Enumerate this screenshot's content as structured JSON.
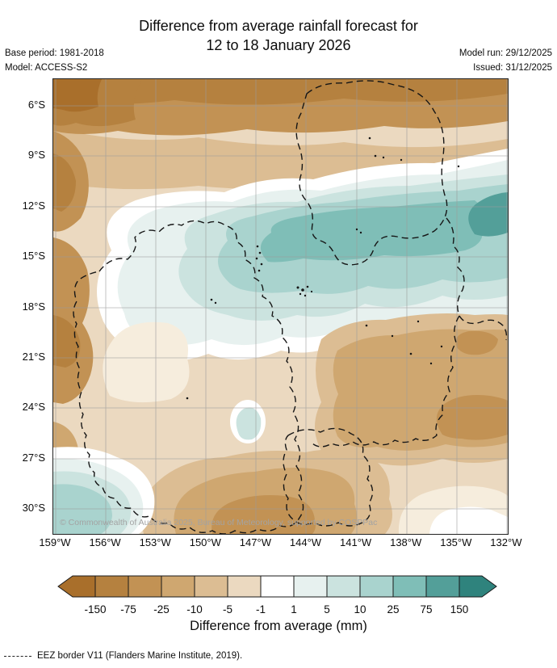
{
  "header": {
    "title_line1": "Difference from average rainfall forecast for",
    "title_line2": "12 to 18 January 2026",
    "base_period": "Base period: 1981-2018",
    "model": "Model: ACCESS-S2",
    "model_run": "Model run: 29/12/2025",
    "issued": "Issued: 31/12/2025"
  },
  "map": {
    "lat_labels": [
      "6°S",
      "9°S",
      "12°S",
      "15°S",
      "18°S",
      "21°S",
      "24°S",
      "27°S",
      "30°S"
    ],
    "lon_labels": [
      "159°W",
      "156°W",
      "153°W",
      "150°W",
      "147°W",
      "144°W",
      "141°W",
      "138°W",
      "135°W",
      "132°W"
    ],
    "copyright": "© Commonwealth of Australia 2025, Bureau of Meteorology, supported by COSPPac"
  },
  "legend": {
    "ticks": [
      "-150",
      "-75",
      "-25",
      "-10",
      "-5",
      "-1",
      "1",
      "5",
      "10",
      "25",
      "75",
      "150"
    ],
    "cell_colors": [
      "#a96f2b",
      "#b5813f",
      "#c29254",
      "#cfa770",
      "#dcbd93",
      "#ebd9c0",
      "#ffffff",
      "#e7f1ef",
      "#cbe3df",
      "#a9d3ce",
      "#7fbeb7",
      "#539f99",
      "#2f837d"
    ],
    "label": "Difference from average (mm)"
  },
  "footer": {
    "eez_label": "EEZ border V11 (Flanders Marine Institute, 2019)."
  },
  "chart_data": {
    "type": "heatmap",
    "title": "Difference from average rainfall forecast for 12 to 18 January 2026",
    "units": "mm",
    "scale_breaks": [
      -150,
      -75,
      -25,
      -10,
      -5,
      -1,
      1,
      5,
      10,
      25,
      75,
      150
    ],
    "lat_axis": [
      "6°S",
      "9°S",
      "12°S",
      "15°S",
      "18°S",
      "21°S",
      "24°S",
      "27°S",
      "30°S"
    ],
    "lon_axis": [
      "159°W",
      "156°W",
      "153°W",
      "150°W",
      "147°W",
      "144°W",
      "141°W",
      "138°W",
      "135°W",
      "132°W"
    ],
    "legend_position": "bottom",
    "grid": true
  }
}
